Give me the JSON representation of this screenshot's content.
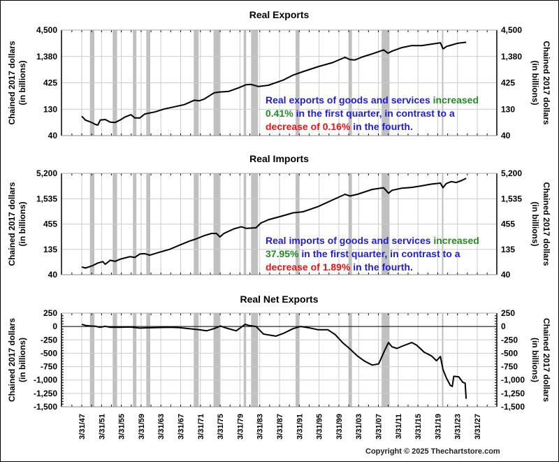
{
  "chart_data": [
    {
      "type": "line",
      "title": "Real Exports",
      "ylabel": "Chained 2017 dollars (in billions)",
      "ylabel_line1": "Chained 2017 dollars",
      "ylabel_line2": "(in billions)",
      "yscale": "log",
      "ylim": [
        40,
        4500
      ],
      "yticks": [
        "4,500",
        "1,380",
        "425",
        "130",
        "40"
      ],
      "ytick_values": [
        4500,
        1380,
        425,
        130,
        40
      ],
      "x": [
        1947.25,
        1948,
        1948.8,
        1949.5,
        1950,
        1950.5,
        1951,
        1952,
        1953,
        1954,
        1955,
        1956,
        1957.2,
        1958,
        1959,
        1960,
        1962,
        1964,
        1966,
        1968,
        1970,
        1971,
        1972,
        1974,
        1975,
        1977,
        1979,
        1980.5,
        1981.5,
        1983,
        1985,
        1988,
        1990,
        1992,
        1995,
        1998,
        2000.5,
        2001.5,
        2002.5,
        2004,
        2006,
        2008.3,
        2009.2,
        2010,
        2012,
        2014,
        2016,
        2018,
        2019.8,
        2020.3,
        2020.5,
        2021,
        2022,
        2023,
        2024,
        2025
      ],
      "values": [
        95,
        80,
        75,
        70,
        66,
        64,
        80,
        82,
        73,
        72,
        80,
        92,
        102,
        88,
        88,
        105,
        115,
        132,
        145,
        160,
        195,
        190,
        205,
        270,
        280,
        290,
        340,
        390,
        395,
        360,
        380,
        480,
        600,
        700,
        870,
        1050,
        1330,
        1200,
        1180,
        1350,
        1550,
        1850,
        1600,
        1750,
        2050,
        2250,
        2250,
        2400,
        2550,
        1950,
        1980,
        2150,
        2300,
        2450,
        2550,
        2600
      ],
      "annotation": {
        "line1_a": "Real exports of goods and services ",
        "line1_b": "increased",
        "line2_a": "0.41%",
        "line2_b": " in the first quarter, in contrast to a",
        "line3_a": "decrease of 0.16%",
        "line3_b": " in the fourth."
      }
    },
    {
      "type": "line",
      "title": "Real Imports",
      "ylabel": "Chained 2017 dollars (in billions)",
      "ylabel_line1": "Chained 2017 dollars",
      "ylabel_line2": "(in billions)",
      "yscale": "log",
      "ylim": [
        40,
        5200
      ],
      "yticks": [
        "5,200",
        "1,535",
        "455",
        "135",
        "40"
      ],
      "ytick_values": [
        5200,
        1535,
        455,
        135,
        40
      ],
      "x": [
        1947.25,
        1948,
        1949.5,
        1950.5,
        1951.5,
        1952,
        1953,
        1954,
        1955,
        1957,
        1958,
        1959,
        1960,
        1961,
        1963,
        1965,
        1967,
        1969,
        1970.5,
        1972,
        1973.5,
        1974.5,
        1975.2,
        1976,
        1978,
        1979.5,
        1980.5,
        1982.5,
        1983.5,
        1985,
        1988,
        1990,
        1992,
        1995,
        1998,
        2000.5,
        2001.5,
        2003,
        2006,
        2008.3,
        2009.3,
        2010,
        2012,
        2014,
        2016,
        2018,
        2019.8,
        2020.3,
        2021,
        2022,
        2023,
        2024,
        2025
      ],
      "values": [
        58,
        55,
        62,
        70,
        75,
        66,
        80,
        76,
        84,
        95,
        92,
        108,
        110,
        102,
        118,
        135,
        165,
        200,
        225,
        260,
        290,
        290,
        245,
        290,
        360,
        400,
        370,
        380,
        480,
        560,
        680,
        780,
        820,
        1050,
        1450,
        1900,
        1750,
        1900,
        2400,
        2600,
        2000,
        2300,
        2550,
        2650,
        2850,
        3100,
        3250,
        2600,
        3200,
        3500,
        3350,
        3650,
        4100
      ],
      "annotation": {
        "line1_a": "Real imports of goods and services ",
        "line1_b": "increased",
        "line2_a": "37.95%",
        "line2_b": " in the first quarter, in contrast to a",
        "line3_a": "decrease of 1.89%",
        "line3_b": " in the fourth."
      }
    },
    {
      "type": "line",
      "title": "Real Net Exports",
      "ylabel": "Chained 2017 dollars (in billions)",
      "ylabel_line1": "Chained 2017 dollars",
      "ylabel_line2": "(in billions)",
      "yscale": "linear",
      "ylim": [
        -1500,
        250
      ],
      "yticks": [
        "250",
        "0",
        "-250",
        "-500",
        "-750",
        "-1,000",
        "-1,250",
        "-1,500"
      ],
      "ytick_values": [
        250,
        0,
        -250,
        -500,
        -750,
        -1000,
        -1250,
        -1500
      ],
      "x": [
        1947.25,
        1948,
        1949,
        1950,
        1951,
        1952,
        1953,
        1955,
        1957,
        1959,
        1960,
        1962,
        1965,
        1967,
        1969,
        1971,
        1972.5,
        1974,
        1975.3,
        1976.5,
        1978.5,
        1980.3,
        1981,
        1982.5,
        1984,
        1986.5,
        1988,
        1990,
        1991.5,
        1993,
        1995,
        1997,
        1998.5,
        2000,
        2001.5,
        2003,
        2004.5,
        2006,
        2007.3,
        2008.5,
        2009.3,
        2010,
        2011,
        2012,
        2014,
        2015,
        2016.5,
        2018,
        2019,
        2019.8,
        2020.3,
        2021,
        2021.8,
        2022.2,
        2022.5,
        2023.5,
        2024.3,
        2024.8,
        2025
      ],
      "values": [
        40,
        20,
        10,
        5,
        -15,
        5,
        -15,
        -15,
        -10,
        -30,
        -25,
        -20,
        -15,
        -20,
        -40,
        -60,
        -80,
        -40,
        10,
        -30,
        -80,
        40,
        20,
        0,
        -140,
        -180,
        -130,
        -40,
        0,
        -20,
        -60,
        -60,
        -150,
        -300,
        -420,
        -550,
        -650,
        -720,
        -700,
        -450,
        -300,
        -380,
        -410,
        -370,
        -300,
        -350,
        -480,
        -550,
        -640,
        -560,
        -800,
        -960,
        -1100,
        -1120,
        -930,
        -940,
        -1040,
        -1060,
        -1350
      ],
      "zero_line": true
    }
  ],
  "x_axis": {
    "ticks": [
      "3/31/47",
      "3/31/51",
      "3/31/55",
      "3/31/59",
      "3/31/63",
      "3/31/67",
      "3/31/71",
      "3/31/75",
      "3/31/79",
      "3/31/83",
      "3/31/87",
      "3/31/91",
      "3/31/95",
      "3/31/99",
      "3/31/03",
      "3/31/07",
      "3/31/11",
      "3/31/15",
      "3/31/19",
      "3/31/23",
      "3/31/27"
    ],
    "tick_years": [
      1947.25,
      1951.25,
      1955.25,
      1959.25,
      1963.25,
      1967.25,
      1971.25,
      1975.25,
      1979.25,
      1983.25,
      1987.25,
      1991.25,
      1995.25,
      1999.25,
      2003.25,
      2007.25,
      2011.25,
      2015.25,
      2019.25,
      2023.25,
      2027.25
    ],
    "range": [
      1943.15,
      2031.2
    ]
  },
  "recessions": [
    [
      1948.9,
      1949.8
    ],
    [
      1953.5,
      1954.4
    ],
    [
      1957.6,
      1958.3
    ],
    [
      1960.3,
      1961.1
    ],
    [
      1969.9,
      1970.9
    ],
    [
      1973.9,
      1975.2
    ],
    [
      1980.0,
      1980.5
    ],
    [
      1981.5,
      1982.9
    ],
    [
      1990.5,
      1991.2
    ],
    [
      2001.2,
      2001.9
    ],
    [
      2007.9,
      2009.5
    ],
    [
      2020.1,
      2020.3
    ]
  ],
  "colors": {
    "recession": "#c0c0c0",
    "grid": "#cccccc",
    "line": "#000000",
    "annot_blue": "#2020d0",
    "annot_green": "#228b22",
    "annot_red": "#ee1111"
  },
  "copyright": "Copyright © 2025 Thechartstore.com"
}
